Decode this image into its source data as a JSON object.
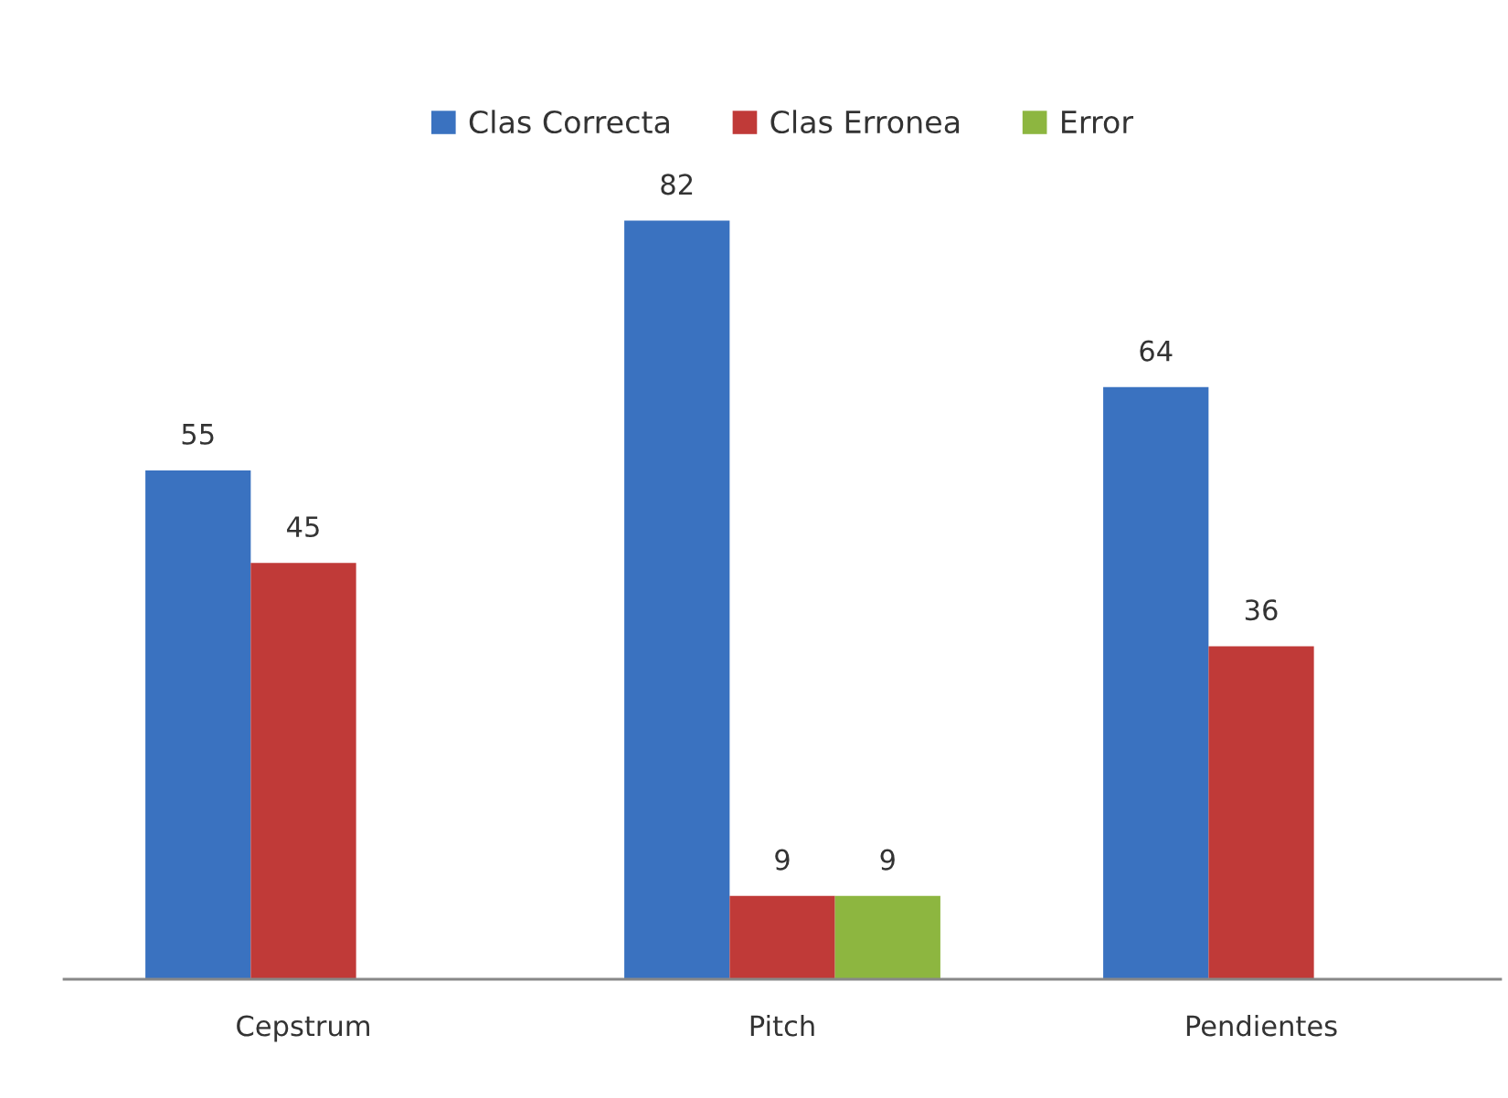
{
  "chart_data": {
    "type": "bar",
    "categories": [
      "Cepstrum",
      "Pitch",
      "Pendientes"
    ],
    "series": [
      {
        "name": "Clas Correcta",
        "color": "#3a72c0",
        "values": [
          55,
          82,
          64
        ]
      },
      {
        "name": "Clas Erronea",
        "color": "#c03a38",
        "values": [
          45,
          9,
          36
        ]
      },
      {
        "name": "Error",
        "color": "#8db640",
        "values": [
          null,
          9,
          null
        ]
      }
    ],
    "data_labels": true,
    "legend": "top",
    "grid": false,
    "tick_labels": "x"
  }
}
